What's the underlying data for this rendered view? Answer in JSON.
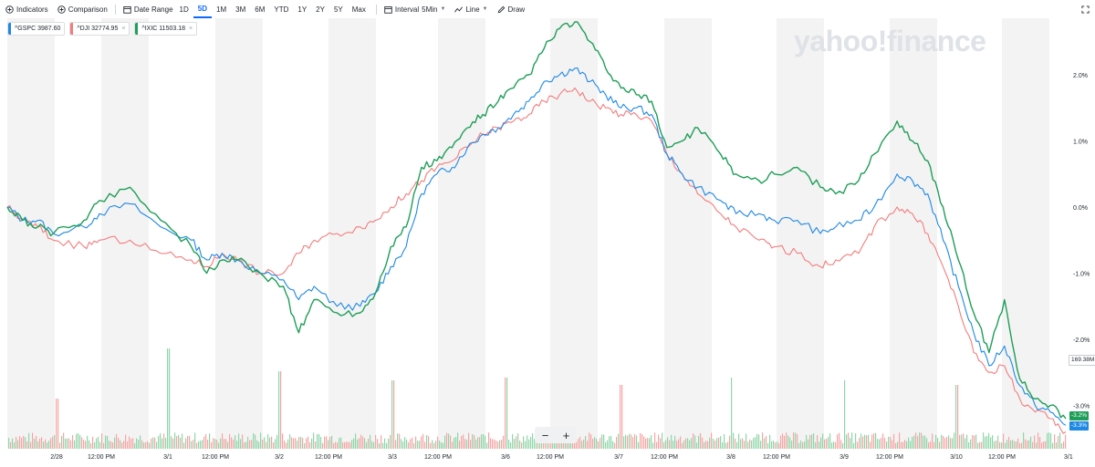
{
  "toolbar": {
    "indicators": "Indicators",
    "comparison": "Comparison",
    "date_range": "Date Range",
    "ranges": [
      "1D",
      "5D",
      "1M",
      "3M",
      "6M",
      "YTD",
      "1Y",
      "2Y",
      "5Y",
      "Max"
    ],
    "active_range": "5D",
    "interval_label": "Interval",
    "interval_value": "5Min",
    "chart_type": "Line",
    "draw": "Draw"
  },
  "symbols": [
    {
      "symbol": "^GSPC",
      "value": "3987.60",
      "color": "#1e88e5"
    },
    {
      "symbol": "^DJI",
      "value": "32774.95",
      "color": "#f47c7c",
      "closable": "×"
    },
    {
      "symbol": "^IXIC",
      "value": "11503.18",
      "color": "#1e9e57",
      "closable": "×"
    }
  ],
  "watermark": "yahoo!finance",
  "zoom": {
    "minus": "−",
    "plus": "+"
  },
  "badges": {
    "volume": "169.38M",
    "ixic": "-3.2%",
    "gspc": "-3.3%"
  },
  "colors": {
    "gspc": "#1e88e5",
    "dji": "#f47c7c",
    "ixic": "#1e9e57",
    "band": "#f3f3f3",
    "volume_up": "#8fd6a9",
    "volume_down": "#f6a5a5"
  },
  "chart_data": {
    "type": "line",
    "y_unit": "percent change",
    "ylim": [
      -3.5,
      2.8
    ],
    "yticks": [
      -3,
      -2,
      -1,
      0,
      1,
      2
    ],
    "ytick_labels": [
      "-3.0%",
      "-2.0%",
      "-1.0%",
      "0.0%",
      "1.0%",
      "2.0%"
    ],
    "xtick_labels": [
      "2/28",
      "12:00 PM",
      "3/1",
      "12:00 PM",
      "3/2",
      "12:00 PM",
      "3/3",
      "12:00 PM",
      "3/6",
      "12:00 PM",
      "3/7",
      "12:00 PM",
      "3/8",
      "12:00 PM",
      "3/9",
      "12:00 PM",
      "3/10",
      "12:00 PM",
      "3/1"
    ],
    "x_extent_days": 9.5,
    "series": [
      {
        "name": "^GSPC",
        "color": "#1e88e5",
        "points": [
          [
            0,
            0
          ],
          [
            0.2,
            -0.2
          ],
          [
            0.4,
            -0.2
          ],
          [
            0.6,
            -0.4
          ],
          [
            1.0,
            -0.3
          ],
          [
            1.2,
            -0.1
          ],
          [
            1.6,
            0.05
          ],
          [
            2.0,
            -0.3
          ],
          [
            2.4,
            -0.5
          ],
          [
            2.6,
            -0.8
          ],
          [
            2.8,
            -0.7
          ],
          [
            3.0,
            -0.8
          ],
          [
            3.3,
            -1.0
          ],
          [
            3.6,
            -1.1
          ],
          [
            3.8,
            -1.4
          ],
          [
            4.0,
            -1.2
          ],
          [
            4.3,
            -1.5
          ],
          [
            4.6,
            -1.5
          ],
          [
            4.8,
            -1.3
          ],
          [
            5.0,
            -0.9
          ],
          [
            5.2,
            -0.6
          ],
          [
            5.4,
            0.2
          ],
          [
            5.6,
            0.5
          ],
          [
            5.8,
            0.6
          ],
          [
            6.0,
            0.9
          ],
          [
            6.2,
            1.1
          ],
          [
            6.4,
            1.2
          ],
          [
            6.6,
            1.4
          ],
          [
            6.8,
            1.6
          ],
          [
            7.0,
            1.9
          ],
          [
            7.2,
            2.0
          ],
          [
            7.4,
            2.1
          ],
          [
            7.6,
            1.9
          ],
          [
            7.8,
            1.7
          ],
          [
            8.0,
            1.5
          ],
          [
            8.2,
            1.5
          ],
          [
            8.4,
            1.4
          ],
          [
            8.6,
            0.8
          ],
          [
            8.8,
            0.5
          ],
          [
            9.0,
            0.3
          ],
          [
            9.3,
            0.1
          ],
          [
            9.5,
            -0.1
          ],
          [
            9.8,
            -0.1
          ],
          [
            10.0,
            -0.2
          ],
          [
            10.3,
            -0.2
          ],
          [
            10.6,
            -0.4
          ],
          [
            10.8,
            -0.3
          ],
          [
            11.1,
            -0.2
          ],
          [
            11.3,
            0.0
          ],
          [
            11.6,
            0.5
          ],
          [
            11.8,
            0.4
          ],
          [
            12.0,
            0.2
          ],
          [
            12.2,
            -0.5
          ],
          [
            12.4,
            -1.2
          ],
          [
            12.6,
            -1.9
          ],
          [
            12.8,
            -2.4
          ],
          [
            13.0,
            -2.1
          ],
          [
            13.2,
            -2.7
          ],
          [
            13.4,
            -3.0
          ],
          [
            13.6,
            -3.1
          ],
          [
            13.8,
            -3.3
          ]
        ]
      },
      {
        "name": "^DJI",
        "color": "#f47c7c",
        "points": [
          [
            0,
            0
          ],
          [
            0.2,
            -0.2
          ],
          [
            0.4,
            -0.3
          ],
          [
            0.6,
            -0.5
          ],
          [
            1.0,
            -0.6
          ],
          [
            1.2,
            -0.5
          ],
          [
            1.6,
            -0.5
          ],
          [
            2.0,
            -0.7
          ],
          [
            2.4,
            -0.8
          ],
          [
            2.6,
            -0.9
          ],
          [
            2.8,
            -0.7
          ],
          [
            3.0,
            -0.8
          ],
          [
            3.3,
            -1.0
          ],
          [
            3.6,
            -1.0
          ],
          [
            3.8,
            -0.7
          ],
          [
            4.0,
            -0.5
          ],
          [
            4.3,
            -0.4
          ],
          [
            4.6,
            -0.3
          ],
          [
            4.8,
            -0.2
          ],
          [
            5.0,
            0.0
          ],
          [
            5.2,
            0.2
          ],
          [
            5.4,
            0.4
          ],
          [
            5.6,
            0.6
          ],
          [
            5.8,
            0.7
          ],
          [
            6.0,
            0.9
          ],
          [
            6.2,
            1.1
          ],
          [
            6.4,
            1.2
          ],
          [
            6.6,
            1.3
          ],
          [
            6.8,
            1.4
          ],
          [
            7.0,
            1.6
          ],
          [
            7.2,
            1.7
          ],
          [
            7.4,
            1.8
          ],
          [
            7.6,
            1.6
          ],
          [
            7.8,
            1.5
          ],
          [
            8.0,
            1.4
          ],
          [
            8.2,
            1.4
          ],
          [
            8.4,
            1.3
          ],
          [
            8.6,
            0.8
          ],
          [
            8.8,
            0.5
          ],
          [
            9.0,
            0.2
          ],
          [
            9.3,
            -0.1
          ],
          [
            9.5,
            -0.3
          ],
          [
            9.8,
            -0.5
          ],
          [
            10.0,
            -0.6
          ],
          [
            10.3,
            -0.7
          ],
          [
            10.6,
            -0.9
          ],
          [
            10.8,
            -0.8
          ],
          [
            11.1,
            -0.7
          ],
          [
            11.3,
            -0.3
          ],
          [
            11.6,
            0.0
          ],
          [
            11.8,
            -0.1
          ],
          [
            12.0,
            -0.4
          ],
          [
            12.2,
            -0.9
          ],
          [
            12.4,
            -1.5
          ],
          [
            12.6,
            -2.2
          ],
          [
            12.8,
            -2.5
          ],
          [
            13.0,
            -2.4
          ],
          [
            13.2,
            -2.9
          ],
          [
            13.4,
            -3.1
          ],
          [
            13.6,
            -3.2
          ],
          [
            13.8,
            -3.4
          ]
        ]
      },
      {
        "name": "^IXIC",
        "color": "#1e9e57",
        "points": [
          [
            0,
            0
          ],
          [
            0.2,
            -0.2
          ],
          [
            0.4,
            -0.3
          ],
          [
            0.6,
            -0.4
          ],
          [
            1.0,
            -0.2
          ],
          [
            1.2,
            0.1
          ],
          [
            1.6,
            0.3
          ],
          [
            2.0,
            -0.2
          ],
          [
            2.4,
            -0.6
          ],
          [
            2.6,
            -1.0
          ],
          [
            2.8,
            -0.8
          ],
          [
            3.0,
            -0.8
          ],
          [
            3.3,
            -1.0
          ],
          [
            3.6,
            -1.2
          ],
          [
            3.8,
            -1.9
          ],
          [
            4.0,
            -1.4
          ],
          [
            4.3,
            -1.6
          ],
          [
            4.6,
            -1.6
          ],
          [
            4.8,
            -1.3
          ],
          [
            5.0,
            -0.6
          ],
          [
            5.2,
            -0.3
          ],
          [
            5.4,
            0.6
          ],
          [
            5.6,
            0.7
          ],
          [
            5.8,
            0.9
          ],
          [
            6.0,
            1.2
          ],
          [
            6.2,
            1.4
          ],
          [
            6.4,
            1.6
          ],
          [
            6.6,
            1.8
          ],
          [
            6.8,
            2.0
          ],
          [
            7.0,
            2.4
          ],
          [
            7.2,
            2.7
          ],
          [
            7.4,
            2.8
          ],
          [
            7.6,
            2.5
          ],
          [
            7.8,
            2.1
          ],
          [
            8.0,
            1.8
          ],
          [
            8.2,
            1.7
          ],
          [
            8.4,
            1.6
          ],
          [
            8.6,
            0.9
          ],
          [
            8.8,
            1.0
          ],
          [
            9.0,
            1.2
          ],
          [
            9.3,
            0.8
          ],
          [
            9.5,
            0.5
          ],
          [
            9.8,
            0.4
          ],
          [
            10.0,
            0.5
          ],
          [
            10.3,
            0.6
          ],
          [
            10.6,
            0.3
          ],
          [
            10.8,
            0.2
          ],
          [
            11.1,
            0.4
          ],
          [
            11.3,
            0.8
          ],
          [
            11.6,
            1.3
          ],
          [
            11.8,
            1.0
          ],
          [
            12.0,
            0.7
          ],
          [
            12.2,
            0.0
          ],
          [
            12.4,
            -0.8
          ],
          [
            12.6,
            -1.6
          ],
          [
            12.8,
            -2.2
          ],
          [
            13.0,
            -1.4
          ],
          [
            13.2,
            -2.6
          ],
          [
            13.4,
            -2.9
          ],
          [
            13.6,
            -3.0
          ],
          [
            13.8,
            -3.2
          ]
        ]
      }
    ],
    "volume": {
      "peak": "169.38M"
    },
    "grid": "vertical session bands",
    "legend": "top-left"
  }
}
